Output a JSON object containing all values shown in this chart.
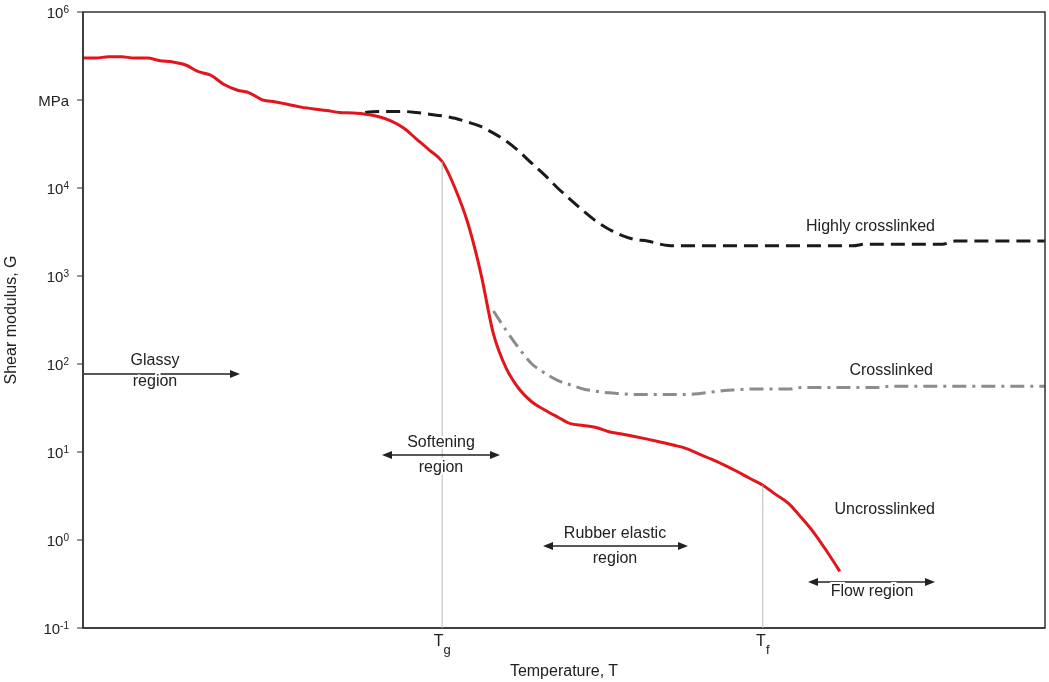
{
  "chart_data": {
    "type": "line",
    "ylabel": "Shear modulus, G",
    "xlabel": "Temperature, T",
    "categories": [
      null,
      null,
      null,
      null,
      null,
      null,
      null,
      null,
      null,
      null,
      null,
      null,
      null,
      null,
      null,
      null,
      null,
      null,
      null,
      null,
      null,
      null,
      null,
      null,
      null,
      null,
      null,
      null,
      "T$_{g}$",
      null,
      null,
      null,
      null,
      null,
      null,
      null,
      null,
      null,
      null,
      null,
      null,
      null,
      null,
      null,
      null,
      null,
      null,
      null,
      null,
      null,
      null,
      null,
      null,
      "T$_{f}$",
      null,
      null,
      null,
      null,
      null,
      null,
      null,
      null,
      null,
      null,
      null,
      null,
      null,
      null,
      null,
      null,
      null,
      null,
      null,
      null,
      null,
      null
    ],
    "log": "y",
    "ylim": [
      0.1,
      1000000
    ],
    "yticks": [
      {
        "value": 0.1,
        "label": "10$^{-1}$"
      },
      {
        "value": 1,
        "label": "10$^{0}$"
      },
      {
        "value": 10,
        "label": "10$^{1}$"
      },
      {
        "value": 100,
        "label": "10$^{2}$"
      },
      {
        "value": 1000,
        "label": "10$^{3}$"
      },
      {
        "value": 10000,
        "label": "10$^{4}$"
      },
      {
        "value": 100000,
        "label": "MPa"
      },
      {
        "value": 1000000,
        "label": "10$^{6}$"
      }
    ],
    "marker": "none",
    "series": [
      {
        "name": "Highly crosslinked",
        "color": "#1a1a1a",
        "line_style": "dashed",
        "values": [
          null,
          null,
          null,
          null,
          null,
          null,
          null,
          null,
          null,
          null,
          null,
          null,
          null,
          null,
          null,
          null,
          null,
          null,
          null,
          null,
          null,
          null,
          72000,
          74000,
          74000,
          74000,
          72000,
          69000,
          66000,
          62000,
          56000,
          50000,
          42000,
          34000,
          26000,
          19000,
          14000,
          10000,
          7400,
          5500,
          4200,
          3400,
          2900,
          2600,
          2500,
          2300,
          2200,
          2200,
          2200,
          2200,
          2200,
          2200,
          2200,
          2200,
          2200,
          2200,
          2200,
          2200,
          2200,
          2200,
          2200,
          2300,
          2300,
          2300,
          2300,
          2300,
          2300,
          2300,
          2500,
          2500,
          2500,
          2500,
          2500,
          2500,
          2500,
          2500
        ]
      },
      {
        "name": "Crosslinked",
        "color": "#8c8c8c",
        "line_style": "dashdot",
        "values": [
          null,
          null,
          null,
          null,
          null,
          null,
          null,
          null,
          null,
          null,
          null,
          null,
          null,
          null,
          null,
          null,
          null,
          null,
          null,
          null,
          null,
          null,
          null,
          null,
          null,
          null,
          null,
          null,
          null,
          null,
          null,
          null,
          400,
          240,
          150,
          100,
          79,
          65,
          58,
          52,
          49,
          47,
          46,
          45,
          45,
          45,
          45,
          45,
          46,
          48,
          50,
          51,
          52,
          52,
          52,
          52,
          54,
          54,
          54,
          54,
          54,
          54,
          54,
          56,
          56,
          56,
          56,
          56,
          56,
          56,
          56,
          56,
          56,
          56,
          56,
          56
        ]
      },
      {
        "name": "Uncrosslinked",
        "color": "#e2141c",
        "line_style": "solid",
        "values": [
          300000,
          300000,
          310000,
          310000,
          300000,
          300000,
          280000,
          270000,
          250000,
          210000,
          190000,
          150000,
          130000,
          120000,
          100000,
          95000,
          89000,
          83000,
          79000,
          76000,
          72000,
          71000,
          69000,
          65000,
          58000,
          48000,
          36000,
          27000,
          20000,
          10000,
          4000,
          1100,
          220,
          89,
          52,
          37,
          30,
          25,
          21,
          20,
          19,
          17,
          16,
          15,
          14,
          13,
          12,
          11,
          9.5,
          8.3,
          7.1,
          6.0,
          5.0,
          4.2,
          3.3,
          2.6,
          1.8,
          1.2,
          0.74,
          0.44,
          null,
          null,
          null,
          null,
          null,
          null,
          null,
          null,
          null,
          null,
          null,
          null,
          null,
          null,
          null,
          null
        ]
      }
    ],
    "annotations": [
      "Glassy\nregion",
      "Softening\nregion",
      "Rubber elastic\nregion",
      "Flow region"
    ]
  }
}
